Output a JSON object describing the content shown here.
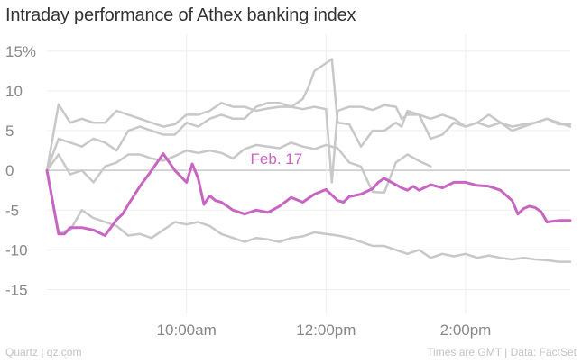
{
  "title": "Intraday performance of Athex banking index",
  "footer": {
    "source_left": "Quartz | qz.com",
    "source_right": "Times are GMT | Data: FactSet"
  },
  "colors": {
    "highlight": "#c765c3",
    "context": "#c8c8c8",
    "zero_line": "#c8c8c8",
    "grid": "#eeeeee"
  },
  "chart_data": {
    "type": "line",
    "title": "Intraday performance of Athex banking index",
    "xlabel": "",
    "ylabel": "",
    "xlim": [
      "8:00",
      "15:30"
    ],
    "ylim": [
      -18,
      16
    ],
    "y_ticks": [
      {
        "value": 15,
        "label": "15%"
      },
      {
        "value": 10,
        "label": "10"
      },
      {
        "value": 5,
        "label": "5"
      },
      {
        "value": 0,
        "label": "0"
      },
      {
        "value": -5,
        "label": "-5"
      },
      {
        "value": -10,
        "label": "-10"
      },
      {
        "value": -15,
        "label": "-15"
      }
    ],
    "x_ticks": [
      {
        "value": "10:00",
        "label": "10:00am"
      },
      {
        "value": "12:00",
        "label": "12:00pm"
      },
      {
        "value": "14:00",
        "label": "2:00pm"
      }
    ],
    "grid": true,
    "annotations": [
      {
        "text": "Feb. 17",
        "series": "Feb. 17",
        "x": "10:55",
        "y": 1.5
      }
    ],
    "series": [
      {
        "name": "Feb. 17",
        "highlight": true,
        "x": [
          "8:00",
          "8:10",
          "8:15",
          "8:20",
          "8:30",
          "8:40",
          "8:50",
          "9:00",
          "9:05",
          "9:10",
          "9:20",
          "9:30",
          "9:40",
          "9:50",
          "10:00",
          "10:05",
          "10:10",
          "10:15",
          "10:20",
          "10:25",
          "10:30",
          "10:35",
          "10:40",
          "10:50",
          "11:00",
          "11:10",
          "11:20",
          "11:30",
          "11:40",
          "11:50",
          "12:00",
          "12:10",
          "12:15",
          "12:20",
          "12:30",
          "12:40",
          "12:45",
          "12:50",
          "13:00",
          "13:05",
          "13:10",
          "13:15",
          "13:20",
          "13:30",
          "13:40",
          "13:50",
          "14:00",
          "14:10",
          "14:20",
          "14:30",
          "14:40",
          "14:45",
          "14:50",
          "14:55",
          "15:00",
          "15:05",
          "15:10",
          "15:20",
          "15:30"
        ],
        "y": [
          0,
          -8,
          -8,
          -7.2,
          -7.2,
          -7.5,
          -8.2,
          -6.2,
          -5.5,
          -4.3,
          -2,
          0,
          2.1,
          0,
          -1.5,
          0.8,
          -1,
          -4.3,
          -3.2,
          -3.8,
          -4,
          -4.5,
          -5,
          -5.5,
          -5,
          -5.3,
          -4.5,
          -3.4,
          -4,
          -3,
          -2.4,
          -3.8,
          -4,
          -3.3,
          -3,
          -2.3,
          -1.5,
          -1,
          -1.8,
          -2.2,
          -2.5,
          -2,
          -2.5,
          -1.8,
          -2.2,
          -1.5,
          -1.5,
          -1.9,
          -2,
          -2.5,
          -3.8,
          -5.5,
          -4.8,
          -4.5,
          -4.7,
          -5.2,
          -6.5,
          -6.3,
          -6.3
        ]
      },
      {
        "name": "",
        "x": [
          "8:00",
          "8:10",
          "8:20",
          "8:30",
          "8:40",
          "8:50",
          "9:00",
          "9:10",
          "9:20",
          "9:30",
          "9:40",
          "9:50",
          "10:00",
          "10:10",
          "10:20",
          "10:30",
          "10:40",
          "10:50",
          "11:00",
          "11:10",
          "11:20",
          "11:30",
          "11:40",
          "11:50",
          "12:00",
          "12:05",
          "12:10",
          "12:20",
          "12:30",
          "12:40",
          "12:50",
          "13:00",
          "13:05",
          "13:10",
          "13:20",
          "13:30",
          "13:40",
          "13:50",
          "14:00",
          "14:10",
          "14:20",
          "14:30",
          "14:40",
          "14:50",
          "15:00",
          "15:10",
          "15:20",
          "15:30"
        ],
        "y": [
          0,
          8.3,
          6,
          6.5,
          6,
          6,
          7.5,
          7,
          6.5,
          6,
          5.5,
          5.8,
          7,
          7,
          7.5,
          8.5,
          8,
          8,
          7.5,
          7.8,
          8,
          8,
          7.7,
          8,
          7.7,
          -1.5,
          7.5,
          8,
          8,
          7.6,
          8.2,
          8,
          6.5,
          7,
          7,
          6.5,
          7,
          6.5,
          5.5,
          6,
          5.5,
          6,
          5.5,
          5.8,
          6,
          6.5,
          6,
          5.5
        ]
      },
      {
        "name": "",
        "x": [
          "8:00",
          "8:10",
          "8:20",
          "8:30",
          "8:40",
          "8:50",
          "9:00",
          "9:10",
          "9:20",
          "9:30",
          "9:40",
          "9:50",
          "10:00",
          "10:10",
          "10:20",
          "10:30",
          "10:40",
          "10:50",
          "11:00",
          "11:10",
          "11:20",
          "11:30",
          "11:40",
          "11:45",
          "11:50",
          "12:00",
          "12:05",
          "12:10",
          "12:20",
          "12:30",
          "12:40",
          "12:50",
          "13:00",
          "13:05",
          "13:10",
          "13:20",
          "13:30",
          "13:40",
          "13:50",
          "14:00",
          "14:10",
          "14:20",
          "14:30",
          "14:40",
          "14:50",
          "15:00",
          "15:10",
          "15:20",
          "15:30"
        ],
        "y": [
          0,
          4,
          3.5,
          3,
          4,
          3.5,
          2.5,
          5,
          5.5,
          5,
          4.5,
          4.5,
          6,
          5.5,
          6.5,
          7,
          6.5,
          6.5,
          8,
          8.5,
          8.5,
          8,
          9,
          10.5,
          12.5,
          13.5,
          14,
          6,
          5.8,
          3,
          5,
          5,
          6,
          5.5,
          7.5,
          7,
          4,
          4.5,
          6,
          5.5,
          6,
          7,
          6,
          5,
          5.5,
          6,
          6.5,
          5.8,
          5.8
        ]
      },
      {
        "name": "",
        "x": [
          "8:00",
          "8:10",
          "8:20",
          "8:30",
          "8:40",
          "8:50",
          "9:00",
          "9:10",
          "9:20",
          "9:30",
          "9:40",
          "9:50",
          "10:00",
          "10:10",
          "10:20",
          "10:30",
          "10:40",
          "10:50",
          "11:00",
          "11:10",
          "11:20",
          "11:30",
          "11:40",
          "11:50",
          "12:00",
          "12:10",
          "12:20",
          "12:30",
          "12:40",
          "12:50",
          "13:00",
          "13:10",
          "13:20",
          "13:30"
        ],
        "y": [
          0,
          2,
          -0.5,
          0,
          -1.5,
          0.5,
          1,
          2,
          2,
          1.5,
          1.2,
          1.8,
          2.5,
          2.2,
          2.5,
          2.2,
          1.5,
          2.7,
          3.2,
          3,
          2.8,
          3.5,
          3,
          2.7,
          3.2,
          2.8,
          1,
          0.5,
          -2.7,
          -2.8,
          1,
          2,
          1.2,
          0.5
        ]
      },
      {
        "name": "",
        "x": [
          "8:00",
          "8:10",
          "8:20",
          "8:30",
          "8:40",
          "8:50",
          "9:00",
          "9:10",
          "9:20",
          "9:30",
          "9:40",
          "9:50",
          "10:00",
          "10:10",
          "10:20",
          "10:30",
          "10:40",
          "10:50",
          "11:00",
          "11:10",
          "11:20",
          "11:30",
          "11:40",
          "11:50",
          "12:00",
          "12:10",
          "12:20",
          "12:30",
          "12:40",
          "12:50",
          "13:00",
          "13:10",
          "13:20",
          "13:30",
          "13:40",
          "13:50",
          "14:00",
          "14:10",
          "14:20",
          "14:30",
          "14:40",
          "14:50",
          "15:00",
          "15:10",
          "15:20",
          "15:30"
        ],
        "y": [
          0,
          -7.8,
          -7.5,
          -5,
          -6,
          -6.5,
          -7,
          -8.2,
          -8,
          -8.5,
          -7.5,
          -6.5,
          -6.8,
          -6.5,
          -7,
          -8,
          -8.5,
          -9,
          -8.5,
          -8.7,
          -9,
          -8.5,
          -8.3,
          -7.8,
          -8,
          -8.2,
          -8.5,
          -9,
          -9.5,
          -9.5,
          -10,
          -10.5,
          -10,
          -11,
          -10.5,
          -10.8,
          -10.5,
          -11,
          -10.7,
          -11,
          -11.2,
          -11,
          -11.2,
          -11.3,
          -11.5,
          -11.5
        ]
      }
    ]
  }
}
